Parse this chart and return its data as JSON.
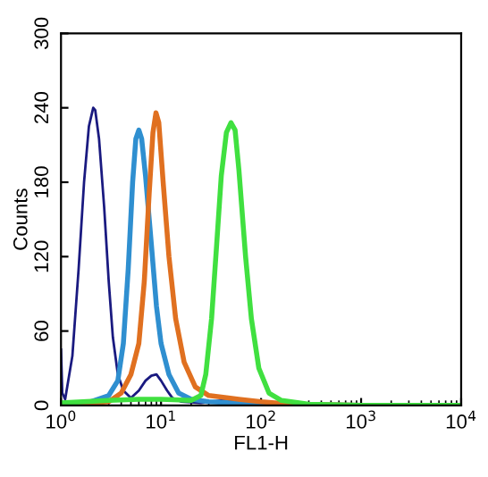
{
  "chart_data": {
    "type": "line",
    "xlabel": "FL1-H",
    "ylabel": "Counts",
    "log": "x",
    "xlim": [
      1,
      10000
    ],
    "ylim": [
      0,
      300
    ],
    "xticks": [
      {
        "value": 1,
        "label": "10$^{0}$"
      },
      {
        "value": 10,
        "label": "10$^{1}$"
      },
      {
        "value": 100,
        "label": "10$^{2}$"
      },
      {
        "value": 1000,
        "label": "10$^{3}$"
      },
      {
        "value": 10000,
        "label": "10$^{4}$"
      }
    ],
    "yticks": [
      0,
      60,
      120,
      180,
      240,
      300
    ],
    "grid": false,
    "legend": false,
    "marker": "none",
    "line_style": "solid",
    "series": [
      {
        "color": "#1a1a80",
        "x": [
          1.0,
          1.03,
          1.1,
          1.3,
          1.5,
          1.7,
          1.9,
          2.1,
          2.2,
          2.4,
          2.7,
          3.0,
          3.3,
          3.7,
          4.2,
          5,
          6,
          7,
          8,
          9,
          10,
          11.5,
          13,
          16,
          25,
          40,
          60,
          100
        ],
        "values": [
          45,
          10,
          5,
          40,
          110,
          180,
          225,
          240,
          238,
          215,
          160,
          100,
          55,
          25,
          12,
          6,
          12,
          20,
          24,
          25,
          20,
          12,
          6,
          3,
          2,
          4,
          3,
          2
        ]
      },
      {
        "color": "#2f8fd0",
        "x": [
          1,
          2,
          3,
          3.7,
          4.2,
          4.7,
          5.2,
          5.6,
          6.0,
          6.4,
          7,
          8,
          9,
          10,
          12,
          15,
          20,
          30,
          100,
          1000,
          10000
        ],
        "values": [
          0,
          3,
          8,
          20,
          50,
          110,
          180,
          215,
          222,
          215,
          185,
          130,
          80,
          50,
          25,
          10,
          5,
          3,
          1,
          0,
          0
        ]
      },
      {
        "color": "#e07020",
        "x": [
          1,
          3,
          4,
          5,
          6,
          6.8,
          7.6,
          8.3,
          8.9,
          9.5,
          10.5,
          12,
          14,
          17,
          22,
          30,
          60,
          100,
          200,
          1000,
          10000
        ],
        "values": [
          0,
          3,
          10,
          25,
          50,
          100,
          170,
          220,
          236,
          228,
          180,
          120,
          70,
          35,
          15,
          8,
          5,
          3,
          1,
          0,
          0
        ]
      },
      {
        "color": "#40e040",
        "x": [
          1,
          3,
          6,
          10,
          20,
          25,
          28,
          32,
          36,
          40,
          45,
          50,
          55,
          60,
          70,
          80,
          95,
          120,
          160,
          300,
          1000,
          10000
        ],
        "values": [
          2,
          4,
          5,
          5,
          4,
          8,
          25,
          70,
          130,
          185,
          220,
          228,
          222,
          190,
          120,
          70,
          30,
          10,
          4,
          1,
          0,
          0
        ]
      }
    ]
  }
}
